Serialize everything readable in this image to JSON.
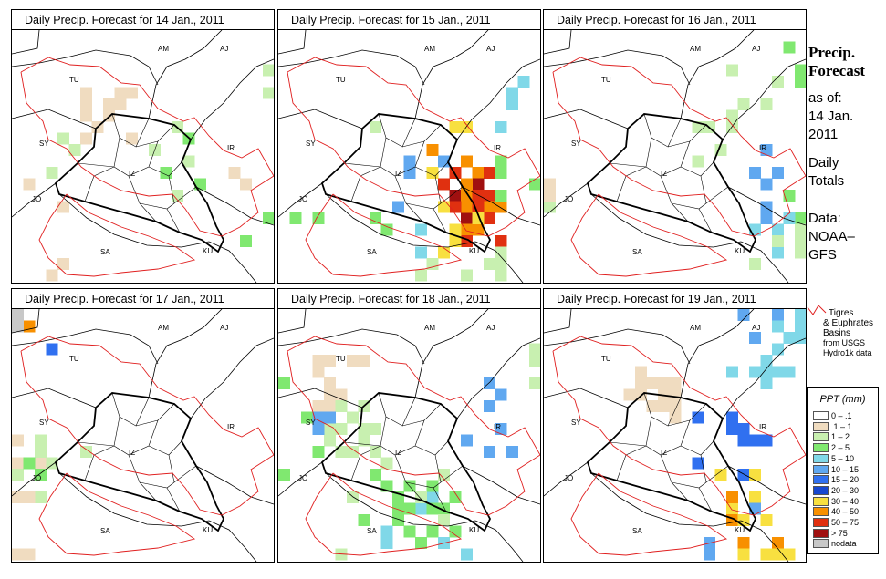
{
  "panels": [
    {
      "title": "Daily Precip. Forecast for  14 Jan., 2011"
    },
    {
      "title": "Daily Precip. Forecast for  15 Jan., 2011"
    },
    {
      "title": "Daily Precip. Forecast for  16 Jan., 2011"
    },
    {
      "title": "Daily Precip. Forecast for  17 Jan., 2011"
    },
    {
      "title": "Daily Precip. Forecast for  18 Jan., 2011"
    },
    {
      "title": "Daily Precip. Forecast for  19 Jan., 2011"
    }
  ],
  "country_labels": [
    "AM",
    "AJ",
    "TU",
    "SY",
    "IR",
    "IZ",
    "JO",
    "SA",
    "KU"
  ],
  "side": {
    "title_line1": "Precip.",
    "title_line2": "Forecast",
    "asof_line1": "as of:",
    "asof_line2": "14 Jan.",
    "asof_line3": "2011",
    "totals_line1": "Daily",
    "totals_line2": "Totals",
    "data_line1": "Data:",
    "data_line2": "NOAA–",
    "data_line3": "GFS"
  },
  "basin_legend": {
    "line1": "Tigres",
    "line2": "& Euphrates",
    "line3": "Basins",
    "line4": "from USGS",
    "line5": "Hydro1k data",
    "color": "#e02020"
  },
  "legend": {
    "title": "PPT (mm)",
    "items": [
      {
        "label": "0 – .1",
        "color": "#ffffff"
      },
      {
        "label": ".1 – 1",
        "color": "#f0dcc0"
      },
      {
        "label": "1 – 2",
        "color": "#c8f0b0"
      },
      {
        "label": "2 – 5",
        "color": "#80e870"
      },
      {
        "label": "5 – 10",
        "color": "#80d8e8"
      },
      {
        "label": "10 – 15",
        "color": "#60a8f0"
      },
      {
        "label": "15 – 20",
        "color": "#3070f0"
      },
      {
        "label": "20 – 30",
        "color": "#1848d0"
      },
      {
        "label": "30 – 40",
        "color": "#f8e040"
      },
      {
        "label": "40 – 50",
        "color": "#f89000"
      },
      {
        "label": "50 – 75",
        "color": "#e03010"
      },
      {
        "label": "> 75",
        "color": "#a01010"
      },
      {
        "label": "nodata",
        "color": "#c8c8c8"
      }
    ]
  }
}
